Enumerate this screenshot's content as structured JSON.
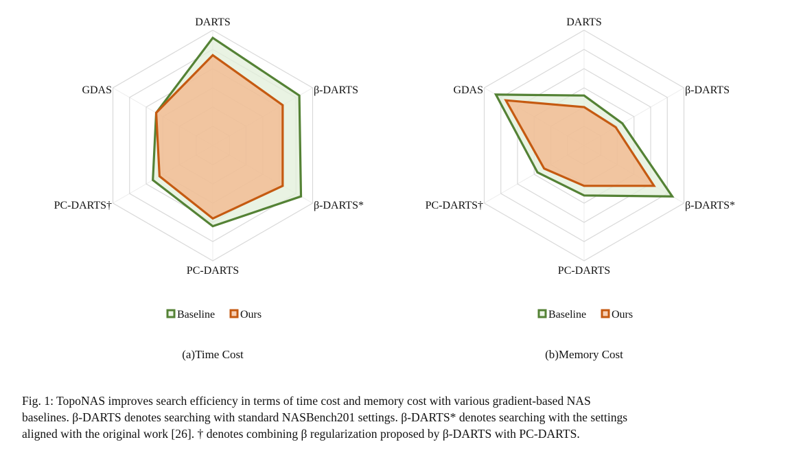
{
  "colors": {
    "baseline_stroke": "#548235",
    "baseline_fill": "#E2EFDA",
    "ours_stroke": "#C55A11",
    "ours_fill": "#F4B183",
    "grid": "#D9D9D9"
  },
  "chart_data": [
    {
      "type": "radar",
      "title": "(a)Time Cost",
      "axes": [
        "DARTS",
        "β-DARTS",
        "β-DARTS*",
        "PC-DARTS",
        "PC-DARTS†",
        "GDAS"
      ],
      "rmax": 6,
      "grid_rings": 6,
      "series": [
        {
          "name": "Baseline",
          "values": [
            5.6,
            5.2,
            5.3,
            4.2,
            3.6,
            3.4
          ]
        },
        {
          "name": "Ours",
          "values": [
            4.7,
            4.2,
            4.2,
            3.8,
            3.2,
            3.4
          ]
        }
      ],
      "legend": [
        "Baseline",
        "Ours"
      ],
      "legend_position": "bottom"
    },
    {
      "type": "radar",
      "title": "(b)Memory Cost",
      "axes": [
        "DARTS",
        "β-DARTS",
        "β-DARTS*",
        "PC-DARTS",
        "PC-DARTS†",
        "GDAS"
      ],
      "rmax": 6,
      "grid_rings": 6,
      "series": [
        {
          "name": "Baseline",
          "values": [
            2.6,
            2.3,
            5.3,
            2.6,
            2.8,
            5.3
          ]
        },
        {
          "name": "Ours",
          "values": [
            2.0,
            1.9,
            4.2,
            2.1,
            2.4,
            4.7
          ]
        }
      ],
      "legend": [
        "Baseline",
        "Ours"
      ],
      "legend_position": "bottom"
    }
  ],
  "caption": {
    "lines": [
      "Fig. 1: TopoNAS improves search efficiency in terms of time cost and memory cost with various gradient-based NAS",
      "baselines. β-DARTS denotes searching with standard NASBench201 settings. β-DARTS* denotes searching with the settings",
      "aligned with the original work [26]. † denotes combining β regularization proposed by β-DARTS with PC-DARTS."
    ]
  }
}
